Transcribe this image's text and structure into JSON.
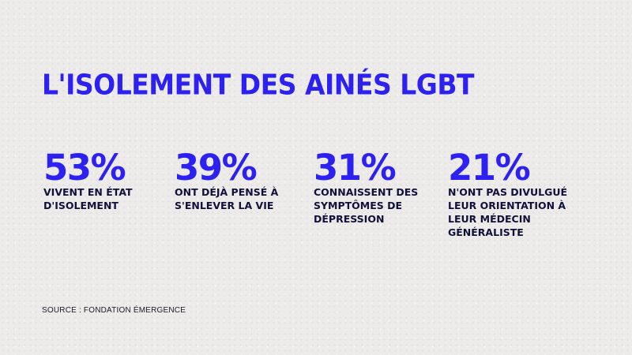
{
  "title": "L'ISOLEMENT DES AINÉS LGBT",
  "chart_data": {
    "type": "table",
    "title": "L'ISOLEMENT DES AINÉS LGBT",
    "unit": "%",
    "items": [
      {
        "value": 53,
        "label": "53%",
        "description": "VIVENT EN ÉTAT\nD'ISOLEMENT"
      },
      {
        "value": 39,
        "label": "39%",
        "description": "ONT DÉJÀ PENSÉ À\nS'ENLEVER LA VIE"
      },
      {
        "value": 31,
        "label": "31%",
        "description": "CONNAISSENT DES\nSYMPTÔMES DE\nDÉPRESSION"
      },
      {
        "value": 21,
        "label": "21%",
        "description": "N'ONT PAS DIVULGUÉ\nLEUR ORIENTATION À\nLEUR MÉDECIN\nGÉNÉRALISTE"
      }
    ]
  },
  "colors": {
    "accent": "#2d21f2",
    "text": "#10103a",
    "background": "#ecebea"
  },
  "source": "SOURCE : FONDATION ÉMERGENCE"
}
